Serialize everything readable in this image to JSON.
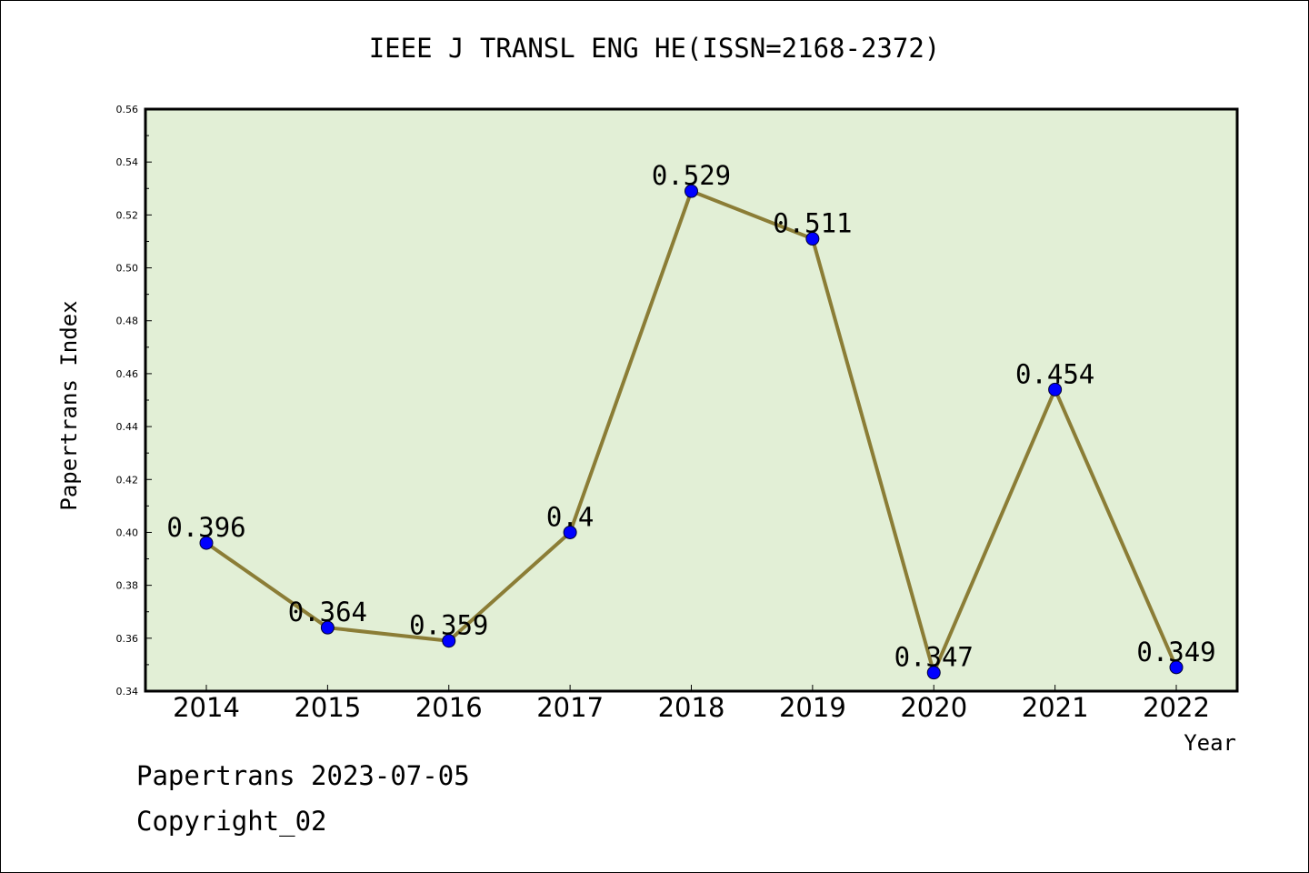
{
  "chart_data": {
    "type": "line",
    "title": "IEEE J TRANSL ENG HE(ISSN=2168-2372)",
    "xlabel": "Year",
    "ylabel": "Papertrans Index",
    "categories": [
      "2014",
      "2015",
      "2016",
      "2017",
      "2018",
      "2019",
      "2020",
      "2021",
      "2022"
    ],
    "series": [
      {
        "values": [
          0.396,
          0.364,
          0.359,
          0.4,
          0.529,
          0.511,
          0.347,
          0.454,
          0.349
        ],
        "labels": [
          "0.396",
          "0.364",
          "0.359",
          "0.4",
          "0.529",
          "0.511",
          "0.347",
          "0.454",
          "0.349"
        ]
      }
    ],
    "ylim": [
      0.34,
      0.56
    ],
    "yticks": [
      0.34,
      0.36,
      0.38,
      0.4,
      0.42,
      0.44,
      0.46,
      0.48,
      0.5,
      0.52,
      0.54,
      0.56
    ],
    "ytick_labels": [
      "0.34",
      "0.36",
      "0.38",
      "0.40",
      "0.42",
      "0.44",
      "0.46",
      "0.48",
      "0.50",
      "0.52",
      "0.54",
      "0.56"
    ],
    "grid": false,
    "legend": "none",
    "colors": {
      "plot_background": "#e2efd6",
      "line": "#8b7d36",
      "marker": "#0000ff"
    }
  },
  "footer": {
    "date_text": "Papertrans 2023-07-05",
    "copyright_text": "Copyright_02"
  }
}
